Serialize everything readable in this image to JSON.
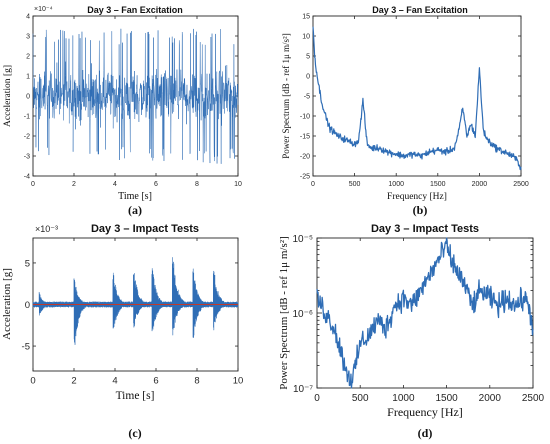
{
  "chart_data": [
    {
      "id": "a",
      "type": "line",
      "title": "Day 3 – Fan Excitation",
      "xlabel": "Time [s]",
      "ylabel": "Acceleration [g]",
      "exponent_label": "×10⁻⁴",
      "panel_label": "(a)",
      "xlim": [
        0,
        10
      ],
      "ylim": [
        -4,
        4
      ],
      "scale": 0.0001,
      "xticks": [
        0,
        2,
        4,
        6,
        8,
        10
      ],
      "yticks": [
        -4,
        -3,
        -2,
        -1,
        0,
        1,
        2,
        3,
        4
      ],
      "series": [
        {
          "values": {
            "kind": "dense-noise",
            "amplitude": 3.4,
            "n": 900
          }
        }
      ],
      "color": "#2f6db5"
    },
    {
      "id": "b",
      "type": "line",
      "title": "Day 3 – Fan Excitation",
      "xlabel": "Frequency [Hz]",
      "ylabel": "Power Spectrum [dB - ref 1μ m/s²]",
      "panel_label": "(b)",
      "xlim": [
        0,
        2500
      ],
      "ylim": [
        -25,
        15
      ],
      "xticks": [
        0,
        500,
        1000,
        1500,
        2000,
        2500
      ],
      "yticks": [
        -25,
        -20,
        -15,
        -10,
        -5,
        0,
        5,
        10,
        15
      ],
      "series": [
        {
          "x": [
            0,
            20,
            50,
            100,
            150,
            200,
            300,
            400,
            500,
            550,
            600,
            650,
            700,
            800,
            900,
            1000,
            1100,
            1200,
            1300,
            1400,
            1500,
            1600,
            1700,
            1750,
            1800,
            1850,
            1900,
            1950,
            1980,
            2000,
            2020,
            2050,
            2100,
            2200,
            2300,
            2400,
            2450,
            2500
          ],
          "y": [
            13,
            5,
            0,
            -6,
            -10,
            -13,
            -15,
            -16,
            -17,
            -16,
            -6,
            -17,
            -18,
            -18,
            -19,
            -19.5,
            -20,
            -19.5,
            -20,
            -19,
            -18.5,
            -19,
            -18,
            -14,
            -8,
            -15,
            -12,
            -15,
            -5,
            2,
            -5,
            -14,
            -16,
            -18,
            -19,
            -20,
            -21,
            -23
          ]
        }
      ],
      "color": "#2f6db5"
    },
    {
      "id": "c",
      "type": "line",
      "title": "Day 3 – Impact Tests",
      "xlabel": "Time [s]",
      "ylabel": "Acceleration [g]",
      "exponent_label": "×10⁻³",
      "panel_label": "(c)",
      "xlim": [
        0,
        10
      ],
      "ylim": [
        -8,
        8
      ],
      "scale": 0.001,
      "xticks": [
        0,
        2,
        4,
        6,
        8,
        10
      ],
      "yticks": [
        -5,
        0,
        5
      ],
      "impacts": [
        {
          "t": 0.3,
          "pos": 1.5,
          "neg": -1.5
        },
        {
          "t": 2.0,
          "pos": 3.5,
          "neg": -6.5
        },
        {
          "t": 3.9,
          "pos": 4.5,
          "neg": -4.0
        },
        {
          "t": 4.9,
          "pos": 5.0,
          "neg": -3.5
        },
        {
          "t": 5.8,
          "pos": 5.2,
          "neg": -4.5
        },
        {
          "t": 6.8,
          "pos": 7.5,
          "neg": -4.5
        },
        {
          "t": 7.8,
          "pos": 5.0,
          "neg": -5.0
        },
        {
          "t": 8.8,
          "pos": 5.2,
          "neg": -4.0
        }
      ],
      "color": "#2f6db5"
    },
    {
      "id": "d",
      "type": "line",
      "title": "Day 3 – Impact Tests",
      "xlabel": "Frequency [Hz]",
      "ylabel": "Power Spectrum [dB - ref 1μ m/s²]",
      "panel_label": "(d)",
      "xlim": [
        0,
        2500
      ],
      "ylim_log10": [
        -7,
        -5
      ],
      "yscale": "log",
      "xticks": [
        0,
        500,
        1000,
        1500,
        2000,
        2500
      ],
      "ytick_labels": [
        "10⁻⁵",
        "10⁻⁶",
        "10⁻⁷"
      ],
      "series": [
        {
          "x": [
            0,
            50,
            100,
            200,
            300,
            350,
            400,
            450,
            500,
            600,
            700,
            800,
            900,
            1000,
            1100,
            1200,
            1300,
            1400,
            1450,
            1500,
            1550,
            1600,
            1700,
            1800,
            1900,
            2000,
            2100,
            2200,
            2300,
            2400,
            2450,
            2500
          ],
          "log10y": [
            -5.8,
            -5.9,
            -6.0,
            -6.2,
            -6.6,
            -6.8,
            -6.9,
            -6.7,
            -6.4,
            -6.3,
            -6.1,
            -6.2,
            -5.9,
            -5.8,
            -5.9,
            -5.7,
            -5.5,
            -5.3,
            -5.2,
            -5.1,
            -5.3,
            -5.4,
            -5.6,
            -5.9,
            -5.7,
            -5.8,
            -5.9,
            -5.8,
            -5.9,
            -5.8,
            -5.9,
            -6.2
          ]
        }
      ],
      "color": "#2f6db5"
    }
  ]
}
